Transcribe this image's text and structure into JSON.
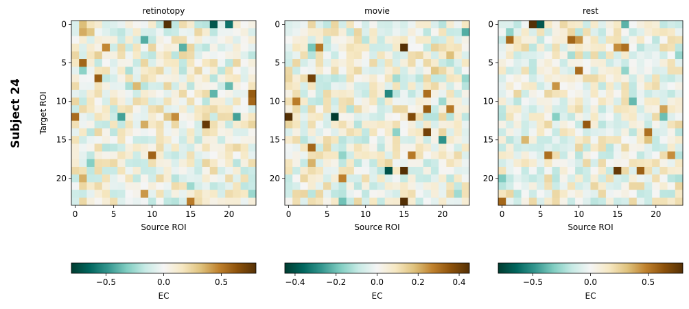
{
  "figure": {
    "row_label": "Subject 24"
  },
  "chart_data": [
    {
      "type": "heatmap",
      "title": "retinotopy",
      "xlabel": "Source ROI",
      "ylabel": "Target ROI",
      "size": 24,
      "seed": 11,
      "xticks": [
        0,
        5,
        10,
        15,
        20
      ],
      "yticks": [
        0,
        5,
        10,
        15,
        20
      ],
      "colormap": "BrBG_r",
      "colorbar": {
        "label": "EC",
        "vmin": -0.8,
        "vmax": 0.8,
        "ticks": [
          -0.5,
          0.0,
          0.5
        ],
        "tick_labels": [
          "−0.5",
          "0.0",
          "0.5"
        ]
      },
      "strong_cells": [
        {
          "row": 0,
          "col": 12,
          "value": 0.8
        },
        {
          "row": 0,
          "col": 18,
          "value": -0.7
        },
        {
          "row": 0,
          "col": 20,
          "value": -0.6
        },
        {
          "row": 13,
          "col": 17,
          "value": 0.75
        },
        {
          "row": 7,
          "col": 3,
          "value": 0.6
        },
        {
          "row": 12,
          "col": 0,
          "value": 0.55
        },
        {
          "row": 12,
          "col": 6,
          "value": -0.45
        },
        {
          "row": 23,
          "col": 15,
          "value": 0.5
        },
        {
          "row": 12,
          "col": 21,
          "value": -0.45
        }
      ]
    },
    {
      "type": "heatmap",
      "title": "movie",
      "xlabel": "Source ROI",
      "ylabel": "",
      "size": 24,
      "seed": 27,
      "xticks": [
        0,
        5,
        10,
        15,
        20
      ],
      "yticks": [
        0,
        5,
        10,
        15,
        20
      ],
      "colormap": "BrBG_r",
      "colorbar": {
        "label": "EC",
        "vmin": -0.45,
        "vmax": 0.45,
        "ticks": [
          -0.4,
          -0.2,
          0.0,
          0.2,
          0.4
        ],
        "tick_labels": [
          "−0.4",
          "−0.2",
          "0.0",
          "0.2",
          "0.4"
        ]
      },
      "strong_cells": [
        {
          "row": 3,
          "col": 15,
          "value": 0.45
        },
        {
          "row": 12,
          "col": 0,
          "value": 0.45
        },
        {
          "row": 12,
          "col": 6,
          "value": -0.45
        },
        {
          "row": 19,
          "col": 15,
          "value": 0.45
        },
        {
          "row": 23,
          "col": 15,
          "value": 0.45
        },
        {
          "row": 7,
          "col": 3,
          "value": 0.4
        },
        {
          "row": 14,
          "col": 18,
          "value": 0.4
        },
        {
          "row": 12,
          "col": 16,
          "value": 0.38
        },
        {
          "row": 19,
          "col": 13,
          "value": -0.4
        },
        {
          "row": 9,
          "col": 13,
          "value": -0.3
        },
        {
          "row": 15,
          "col": 20,
          "value": -0.28
        }
      ]
    },
    {
      "type": "heatmap",
      "title": "rest",
      "xlabel": "Source ROI",
      "ylabel": "",
      "size": 24,
      "seed": 43,
      "xticks": [
        0,
        5,
        10,
        15,
        20
      ],
      "yticks": [
        0,
        5,
        10,
        15,
        20
      ],
      "colormap": "BrBG_r",
      "colorbar": {
        "label": "EC",
        "vmin": -0.8,
        "vmax": 0.8,
        "ticks": [
          -0.5,
          0.0,
          0.5
        ],
        "tick_labels": [
          "−0.5",
          "0.0",
          "0.5"
        ]
      },
      "strong_cells": [
        {
          "row": 0,
          "col": 4,
          "value": 0.8
        },
        {
          "row": 0,
          "col": 5,
          "value": -0.7
        },
        {
          "row": 19,
          "col": 15,
          "value": 0.75
        },
        {
          "row": 6,
          "col": 10,
          "value": 0.55
        },
        {
          "row": 3,
          "col": 15,
          "value": 0.45
        },
        {
          "row": 17,
          "col": 22,
          "value": 0.45
        },
        {
          "row": 0,
          "col": 16,
          "value": -0.4
        }
      ]
    }
  ]
}
